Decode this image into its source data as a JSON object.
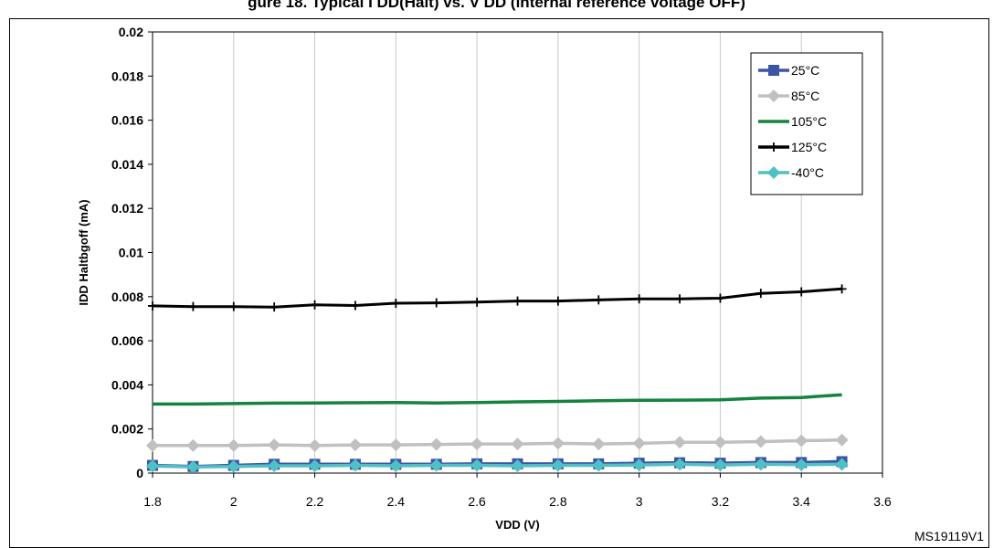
{
  "header": {
    "title": "gure 18. Typical I DD(Halt) vs. V DD (internal reference voltage OFF)"
  },
  "footer": {
    "code": "MS19119V1"
  },
  "chart_data": {
    "type": "line",
    "title": "gure 18. Typical I DD(Halt) vs. V DD (internal reference voltage OFF)",
    "xlabel": "VDD (V)",
    "ylabel": "IDD Haltbgoff (mA)",
    "xlim": [
      1.8,
      3.6
    ],
    "ylim": [
      0,
      0.02
    ],
    "x_ticks": [
      "1.8",
      "2",
      "2.2",
      "2.4",
      "2.6",
      "2.8",
      "3",
      "3.2",
      "3.4",
      "3.6"
    ],
    "y_ticks": [
      "0",
      "0.002",
      "0.004",
      "0.006",
      "0.008",
      "0.01",
      "0.012",
      "0.014",
      "0.016",
      "0.018",
      "0.02"
    ],
    "grid": "vertical",
    "legend_position": "top-right",
    "x": [
      1.8,
      1.9,
      2.0,
      2.1,
      2.2,
      2.3,
      2.4,
      2.5,
      2.6,
      2.7,
      2.8,
      2.9,
      3.0,
      3.1,
      3.2,
      3.3,
      3.4,
      3.5
    ],
    "series": [
      {
        "name": "25°C",
        "color": "#3c55a5",
        "marker": "square",
        "values": [
          0.00035,
          0.0003,
          0.00035,
          0.0004,
          0.0004,
          0.0004,
          0.0004,
          0.0004,
          0.00042,
          0.00042,
          0.00042,
          0.00042,
          0.00045,
          0.00047,
          0.00045,
          0.00048,
          0.00048,
          0.00052
        ]
      },
      {
        "name": "85°C",
        "color": "#c0c0c0",
        "marker": "diamond",
        "values": [
          0.00125,
          0.00125,
          0.00125,
          0.00128,
          0.00125,
          0.00128,
          0.00128,
          0.0013,
          0.00132,
          0.00132,
          0.00135,
          0.00132,
          0.00135,
          0.0014,
          0.0014,
          0.00143,
          0.00147,
          0.0015
        ]
      },
      {
        "name": "105°C",
        "color": "#168240",
        "marker": "none",
        "values": [
          0.00313,
          0.00313,
          0.00315,
          0.00317,
          0.00318,
          0.00319,
          0.0032,
          0.00318,
          0.0032,
          0.00323,
          0.00325,
          0.00328,
          0.0033,
          0.00331,
          0.00332,
          0.0034,
          0.00343,
          0.00355
        ]
      },
      {
        "name": "125°C",
        "color": "#000000",
        "marker": "plus",
        "values": [
          0.00758,
          0.00755,
          0.00755,
          0.00753,
          0.00763,
          0.0076,
          0.0077,
          0.00772,
          0.00775,
          0.0078,
          0.0078,
          0.00785,
          0.0079,
          0.0079,
          0.00793,
          0.00815,
          0.00822,
          0.00835
        ]
      },
      {
        "name": "-40°C",
        "color": "#4fc1c4",
        "marker": "diamond",
        "values": [
          0.00032,
          0.00028,
          0.0003,
          0.00033,
          0.00033,
          0.00035,
          0.00033,
          0.00035,
          0.00035,
          0.00033,
          0.00035,
          0.00035,
          0.00037,
          0.0004,
          0.00037,
          0.0004,
          0.00038,
          0.0004
        ]
      }
    ]
  }
}
